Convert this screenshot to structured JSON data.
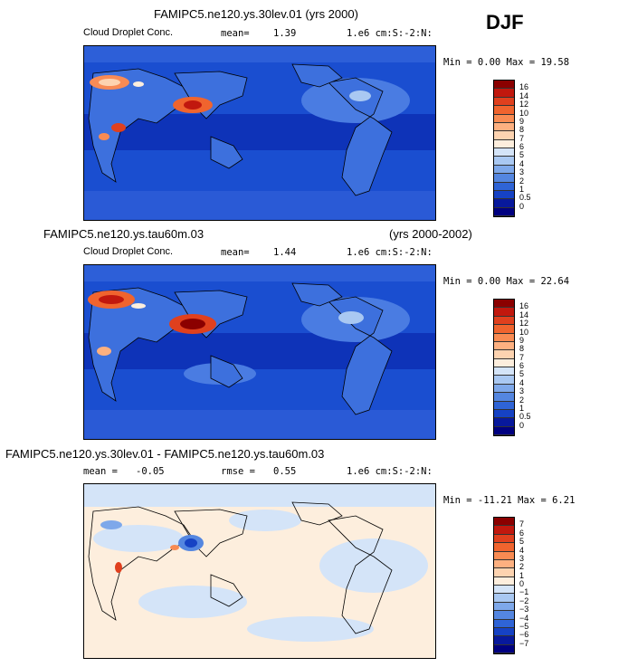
{
  "season": "DJF",
  "panels": [
    {
      "title": "FAMIPC5.ne120.ys.30lev.01 (yrs 2000)",
      "title_right": "",
      "field": "Cloud Droplet Conc.",
      "stat1_label": "mean=",
      "stat1_value": "1.39",
      "stat2_label": "",
      "stat2_value": "",
      "units": "1.e6 cm:S:-2:N:",
      "minmax": "Min =   0.00 Max =   19.58",
      "colorbar_labels": [
        "16",
        "14",
        "12",
        "10",
        "9",
        "8",
        "7",
        "6",
        "5",
        "4",
        "3",
        "2",
        "1",
        "0.5",
        "0"
      ],
      "colorbar_colors": [
        "#8b0000",
        "#c1180e",
        "#e0401e",
        "#f0642e",
        "#f98b52",
        "#fdb080",
        "#fdd3b0",
        "#fdeedd",
        "#d4e4f8",
        "#a9c8f2",
        "#7ea8ea",
        "#5486e0",
        "#2f64d6",
        "#1642c4",
        "#08199c",
        "#000080"
      ]
    },
    {
      "title": "FAMIPC5.ne120.ys.tau60m.03",
      "title_right": "(yrs 2000-2002)",
      "field": "Cloud Droplet Conc.",
      "stat1_label": "mean=",
      "stat1_value": "1.44",
      "stat2_label": "",
      "stat2_value": "",
      "units": "1.e6 cm:S:-2:N:",
      "minmax": "Min =   0.00 Max =   22.64",
      "colorbar_labels": [
        "16",
        "14",
        "12",
        "10",
        "9",
        "8",
        "7",
        "6",
        "5",
        "4",
        "3",
        "2",
        "1",
        "0.5",
        "0"
      ],
      "colorbar_colors": [
        "#8b0000",
        "#c1180e",
        "#e0401e",
        "#f0642e",
        "#f98b52",
        "#fdb080",
        "#fdd3b0",
        "#fdeedd",
        "#d4e4f8",
        "#a9c8f2",
        "#7ea8ea",
        "#5486e0",
        "#2f64d6",
        "#1642c4",
        "#08199c",
        "#000080"
      ]
    },
    {
      "title": "FAMIPC5.ne120.ys.30lev.01 - FAMIPC5.ne120.ys.tau60m.03",
      "title_right": "",
      "field": "",
      "stat1_label": "mean =",
      "stat1_value": "-0.05",
      "stat2_label": "rmse =",
      "stat2_value": "0.55",
      "units": "1.e6 cm:S:-2:N:",
      "minmax": "Min = -11.21 Max =   6.21",
      "colorbar_labels": [
        "7",
        "6",
        "5",
        "4",
        "3",
        "2",
        "1",
        "0",
        "−1",
        "−2",
        "−3",
        "−4",
        "−5",
        "−6",
        "−7"
      ],
      "colorbar_colors": [
        "#8b0000",
        "#c1180e",
        "#e0401e",
        "#f0642e",
        "#f98b52",
        "#fdb080",
        "#fdd3b0",
        "#fdeedd",
        "#d4e4f8",
        "#a9c8f2",
        "#7ea8ea",
        "#5486e0",
        "#2f64d6",
        "#1642c4",
        "#08199c",
        "#000080"
      ]
    }
  ]
}
